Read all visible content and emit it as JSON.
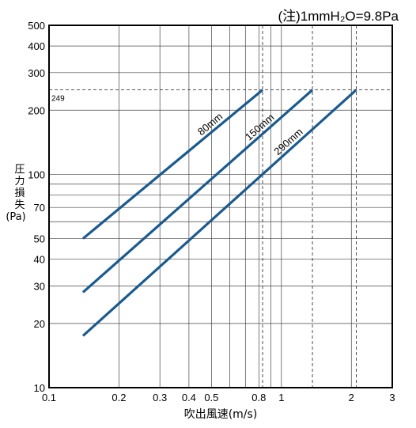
{
  "chart_data": {
    "type": "line",
    "note": "(注)1mmH₂O=9.8Pa",
    "xlabel": "吹出風速(m/s)",
    "ylabel": [
      "圧",
      "力",
      "損",
      "失",
      "(Pa)"
    ],
    "x_scale": "log",
    "y_scale": "log",
    "xlim": [
      0.1,
      3
    ],
    "ylim": [
      10,
      500
    ],
    "x_ticks": [
      {
        "value": 0.1,
        "label": "0.1"
      },
      {
        "value": 0.2,
        "label": "0.2"
      },
      {
        "value": 0.3,
        "label": "0.3"
      },
      {
        "value": 0.4,
        "label": "0.4"
      },
      {
        "value": 0.5,
        "label": "0.5"
      },
      {
        "value": 0.8,
        "label": "0.8"
      },
      {
        "value": 1,
        "label": "1"
      },
      {
        "value": 2,
        "label": "2"
      },
      {
        "value": 3,
        "label": "3"
      }
    ],
    "x_grid": [
      0.1,
      0.2,
      0.3,
      0.4,
      0.5,
      0.6,
      0.7,
      0.8,
      0.9,
      1,
      2,
      3
    ],
    "y_ticks": [
      {
        "value": 10,
        "label": "10"
      },
      {
        "value": 20,
        "label": "20"
      },
      {
        "value": 30,
        "label": "30"
      },
      {
        "value": 40,
        "label": "40"
      },
      {
        "value": 50,
        "label": "50"
      },
      {
        "value": 70,
        "label": "70"
      },
      {
        "value": 100,
        "label": "100"
      },
      {
        "value": 200,
        "label": "200"
      },
      {
        "value": 300,
        "label": "300"
      },
      {
        "value": 400,
        "label": "400"
      },
      {
        "value": 500,
        "label": "500"
      }
    ],
    "y_grid": [
      10,
      20,
      30,
      40,
      50,
      60,
      70,
      80,
      90,
      100,
      200,
      300,
      400,
      500
    ],
    "reference_lines": {
      "y": {
        "value": 249,
        "label": "249"
      },
      "x": [
        0.83,
        1.36,
        2.1
      ]
    },
    "series": [
      {
        "name": "80mm",
        "color": "#1b5a8f",
        "x": [
          0.14,
          0.83
        ],
        "y": [
          50,
          249
        ]
      },
      {
        "name": "150mm",
        "color": "#1b5a8f",
        "x": [
          0.14,
          1.36
        ],
        "y": [
          28,
          249
        ]
      },
      {
        "name": "290mm",
        "color": "#1b5a8f",
        "x": [
          0.14,
          2.1
        ],
        "y": [
          17.5,
          249
        ]
      }
    ],
    "grid": true,
    "legend": "none"
  }
}
